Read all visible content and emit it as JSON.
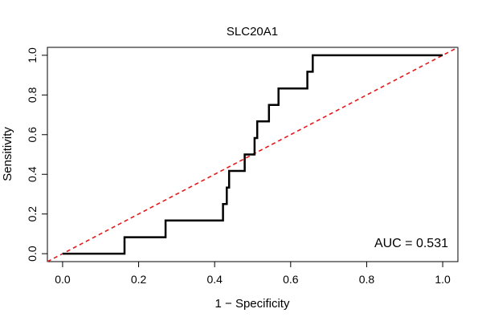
{
  "chart_data": {
    "type": "line",
    "title": "SLC20A1",
    "xlabel": "1 − Specificity",
    "ylabel": "Sensitivity",
    "xlim": [
      -0.04,
      1.04
    ],
    "ylim": [
      -0.04,
      1.04
    ],
    "x_ticks": [
      0.0,
      0.2,
      0.4,
      0.6,
      0.8,
      1.0
    ],
    "x_tick_labels": [
      "0.0",
      "0.2",
      "0.4",
      "0.6",
      "0.8",
      "1.0"
    ],
    "y_ticks": [
      0.0,
      0.2,
      0.4,
      0.6,
      0.8,
      1.0
    ],
    "y_tick_labels": [
      "0.0",
      "0.2",
      "0.4",
      "0.6",
      "0.8",
      "1.0"
    ],
    "annotation": "AUC = 0.531",
    "series": [
      {
        "name": "ROC curve",
        "color": "#000000",
        "x": [
          0.0,
          0.163,
          0.163,
          0.271,
          0.271,
          0.422,
          0.422,
          0.432,
          0.432,
          0.438,
          0.438,
          0.479,
          0.479,
          0.505,
          0.505,
          0.512,
          0.512,
          0.543,
          0.543,
          0.568,
          0.568,
          0.644,
          0.644,
          0.658,
          0.658,
          1.0
        ],
        "y": [
          0.0,
          0.0,
          0.083,
          0.083,
          0.167,
          0.167,
          0.25,
          0.25,
          0.333,
          0.333,
          0.417,
          0.417,
          0.5,
          0.5,
          0.583,
          0.583,
          0.667,
          0.667,
          0.75,
          0.75,
          0.833,
          0.833,
          0.917,
          0.917,
          1.0,
          1.0
        ]
      },
      {
        "name": "Reference line",
        "color": "#e31a1c",
        "x": [
          -0.04,
          1.04
        ],
        "y": [
          -0.04,
          1.04
        ]
      }
    ]
  }
}
